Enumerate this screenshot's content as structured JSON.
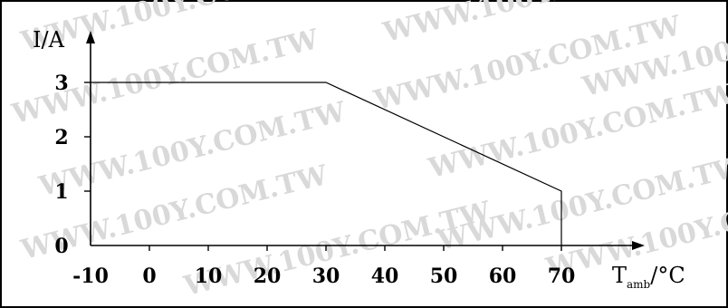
{
  "watermark": {
    "text": "WWW.100Y.COM.TW"
  },
  "chart_data": {
    "type": "line",
    "title": "",
    "xlabel": {
      "main": "T",
      "sub": "amb",
      "unit": "/°C"
    },
    "ylabel": "I/A",
    "x_ticks": [
      "-10",
      "0",
      "10",
      "20",
      "30",
      "40",
      "50",
      "60",
      "70"
    ],
    "x_tick_values": [
      -10,
      0,
      10,
      20,
      30,
      40,
      50,
      60,
      70
    ],
    "y_ticks": [
      "0",
      "1",
      "2",
      "3"
    ],
    "y_tick_values": [
      0,
      1,
      2,
      3
    ],
    "xlim": [
      -10,
      80
    ],
    "ylim": [
      0,
      3.5
    ],
    "grid": false,
    "series": [
      {
        "x": [
          -10,
          30,
          70,
          70
        ],
        "y": [
          3,
          3,
          1,
          0
        ]
      }
    ]
  }
}
